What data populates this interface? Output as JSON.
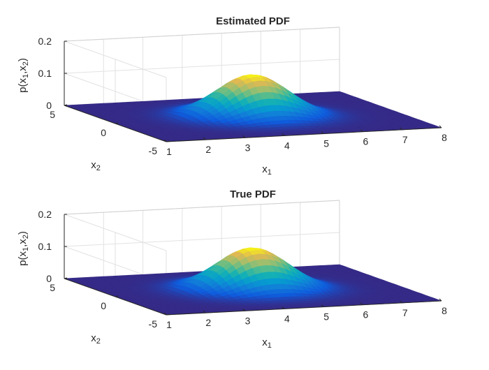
{
  "chart_data": [
    {
      "type": "surface",
      "title": "Estimated PDF",
      "xlabel": "x_1",
      "ylabel": "x_2",
      "zlabel": "p(x_1,x_2)",
      "xlim": [
        1,
        8
      ],
      "ylim": [
        -5,
        5
      ],
      "zlim": [
        0,
        0.2
      ],
      "x_ticks": [
        "1",
        "2",
        "3",
        "4",
        "5",
        "6",
        "7",
        "8"
      ],
      "y_ticks": [
        "-5",
        "0",
        "5"
      ],
      "z_ticks": [
        "0",
        "0.1",
        "0.2"
      ],
      "grid": true,
      "colormap": "parula",
      "distribution": {
        "kind": "gaussian",
        "mean": [
          4.5,
          0
        ],
        "std": [
          0.85,
          1.45
        ],
        "peak": 0.13
      }
    },
    {
      "type": "surface",
      "title": "True PDF",
      "xlabel": "x_1",
      "ylabel": "x_2",
      "zlabel": "p(x_1,x_2)",
      "xlim": [
        1,
        8
      ],
      "ylim": [
        -5,
        5
      ],
      "zlim": [
        0,
        0.2
      ],
      "x_ticks": [
        "1",
        "2",
        "3",
        "4",
        "5",
        "6",
        "7",
        "8"
      ],
      "y_ticks": [
        "-5",
        "0",
        "5"
      ],
      "z_ticks": [
        "0",
        "0.1",
        "0.2"
      ],
      "grid": true,
      "colormap": "parula",
      "distribution": {
        "kind": "gaussian",
        "mean": [
          4.5,
          0
        ],
        "std": [
          0.85,
          1.45
        ],
        "peak": 0.13
      }
    }
  ]
}
